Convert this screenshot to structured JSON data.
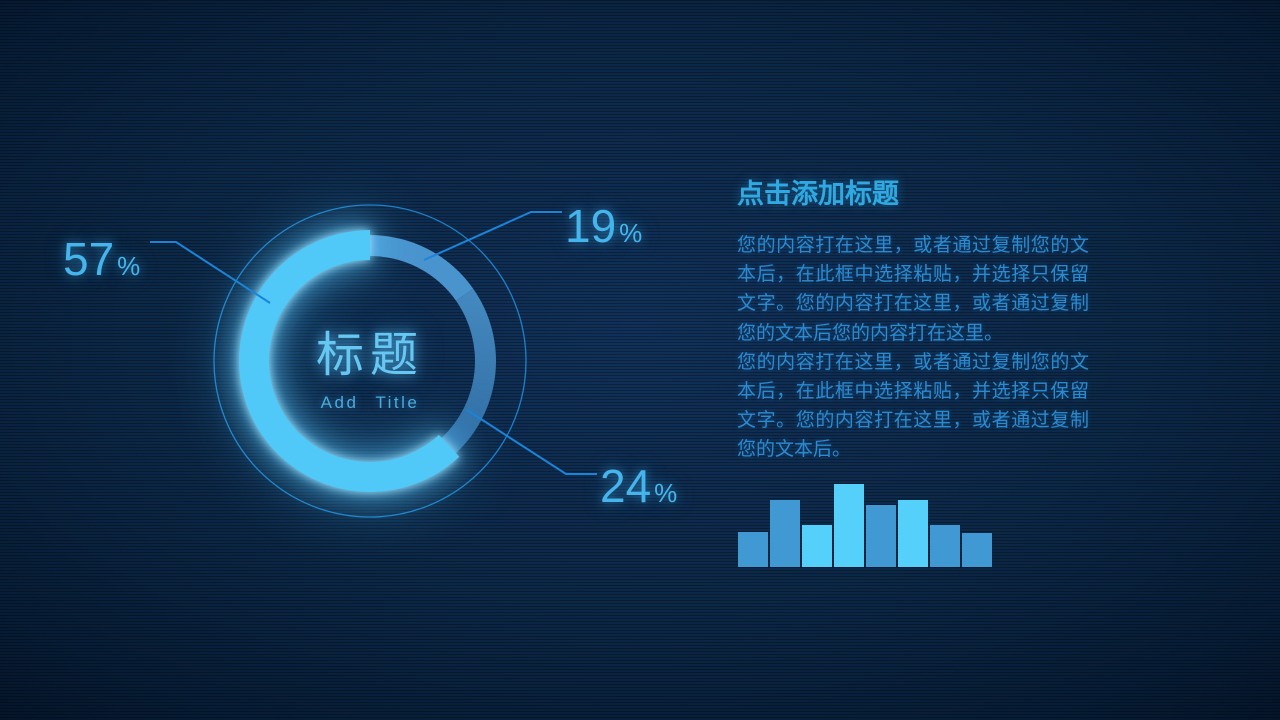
{
  "slide": {
    "heading": "点击添加标题",
    "paragraph1": "您的内容打在这里，或者通过复制您的文本后，在此框中选择粘贴，并选择只保留文字。您的内容打在这里，或者通过复制您的文本后您的内容打在这里。",
    "paragraph2": "您的内容打在这里，或者通过复制您的文本后，在此框中选择粘贴，并选择只保留文字。您的内容打在这里，或者通过复制您的文本后。"
  },
  "donut": {
    "center_title": "标题",
    "center_subtitle": "Add  Title",
    "callouts": [
      {
        "number": "57",
        "unit": "%"
      },
      {
        "number": "19",
        "unit": "%"
      },
      {
        "number": "24",
        "unit": "%"
      }
    ]
  },
  "colors": {
    "accent_bright": "#50c8f8",
    "accent_mid": "#4a94ce",
    "accent_dark": "#2d679e",
    "label_blue": "#45b5ec",
    "heading_blue": "#2fa9e1",
    "body_blue": "#2b8ad0",
    "line_blue": "#1b84d8"
  },
  "chart_data": [
    {
      "type": "donut",
      "title": "标题",
      "subtitle": "Add Title",
      "legend_position": "callouts",
      "series": [
        {
          "name": "19%",
          "value": 19,
          "start_angle": 0,
          "end_angle": 55,
          "color": "#4a94ce"
        },
        {
          "name": "24%",
          "value": 24,
          "start_angle": 55,
          "end_angle": 137,
          "color": "#4890c6",
          "color_end": "#2d679e"
        },
        {
          "name": "57%",
          "value": 57,
          "start_angle": 137,
          "end_angle": 360,
          "color": "#50c8f8",
          "emphasis": true
        }
      ],
      "decor_ring_color": "#2090e0",
      "leader_line_color": "#1b84d8"
    },
    {
      "type": "bar",
      "title": "",
      "xlabel": "",
      "ylabel": "",
      "axis": "none",
      "values": [
        35,
        67,
        42,
        83,
        62,
        67,
        42,
        34
      ],
      "colors": [
        "#4199d3",
        "#4199d3",
        "#55d0fb",
        "#55d0fb",
        "#4199d3",
        "#55d0fb",
        "#4199d3",
        "#4199d3"
      ]
    }
  ]
}
